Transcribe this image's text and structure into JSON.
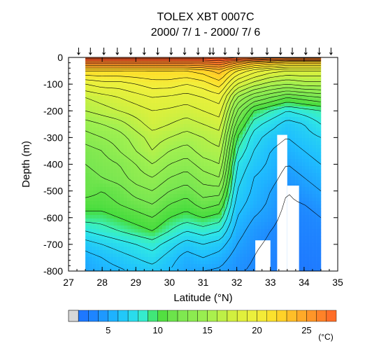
{
  "chart_data": {
    "type": "contour",
    "title": "TOLEX XBT 0007C",
    "subtitle": "2000/ 7/ 1 - 2000/ 7/ 6",
    "xlabel": "Latitude (°N)",
    "ylabel": "Depth (m)",
    "xlim": [
      27,
      35
    ],
    "ylim": [
      -800,
      0
    ],
    "xticks": [
      27,
      28,
      29,
      30,
      31,
      32,
      33,
      34,
      35
    ],
    "yticks": [
      0,
      -100,
      -200,
      -300,
      -400,
      -500,
      -600,
      -700,
      -800
    ],
    "colorbar": {
      "unit": "(°C)",
      "range": [
        1,
        31
      ],
      "tick_values": [
        5,
        10,
        15,
        20,
        25
      ],
      "tick_labels": [
        "5",
        "10",
        "15",
        "20",
        "25"
      ]
    },
    "station_latitudes": [
      27.3,
      27.65,
      28.05,
      28.45,
      28.85,
      29.25,
      29.65,
      30.05,
      30.45,
      30.85,
      31.2,
      31.3,
      31.65,
      32.05,
      32.45,
      32.9,
      33.3,
      33.65,
      34.05,
      34.45,
      34.8
    ],
    "data_extent": {
      "lat": [
        27.5,
        34.5
      ]
    },
    "temperature_profiles": {
      "lats": [
        27.5,
        28.0,
        28.5,
        29.0,
        29.5,
        30.0,
        30.5,
        31.0,
        31.5,
        32.0,
        32.5,
        33.0,
        33.5,
        34.0,
        34.5
      ],
      "depths": [
        0,
        -20,
        -50,
        -100,
        -150,
        -200,
        -250,
        -300,
        -350,
        -400,
        -450,
        -500,
        -550,
        -600,
        -650,
        -700,
        -750,
        -800
      ],
      "values": [
        [
          29.5,
          29.5,
          29.5,
          29.5,
          29.5,
          29.5,
          29.5,
          29.5,
          29.8,
          29.2,
          28.8,
          28.5,
          28.5,
          28.5,
          28.5
        ],
        [
          26.5,
          26.5,
          26.5,
          26.5,
          26.5,
          26.5,
          26.5,
          26.5,
          27.0,
          25.0,
          23.5,
          23.0,
          22.5,
          22.5,
          22.5
        ],
        [
          22.0,
          22.0,
          22.0,
          22.0,
          22.0,
          22.0,
          22.0,
          22.5,
          23.5,
          21.0,
          19.5,
          18.5,
          18.0,
          18.0,
          18.0
        ],
        [
          19.0,
          19.5,
          19.5,
          20.0,
          20.5,
          20.5,
          20.0,
          20.5,
          21.5,
          18.0,
          16.5,
          15.5,
          15.0,
          15.5,
          15.5
        ],
        [
          17.0,
          17.5,
          18.0,
          18.5,
          19.0,
          18.8,
          18.5,
          19.0,
          19.5,
          15.0,
          13.0,
          12.0,
          11.0,
          11.5,
          12.0
        ],
        [
          16.0,
          16.5,
          17.0,
          17.5,
          18.0,
          17.8,
          17.5,
          18.0,
          18.5,
          13.0,
          10.0,
          9.0,
          8.0,
          8.5,
          9.0
        ],
        [
          14.5,
          15.0,
          15.5,
          16.5,
          17.5,
          17.0,
          16.5,
          17.0,
          17.5,
          11.5,
          8.5,
          7.5,
          6.5,
          7.0,
          8.0
        ],
        [
          13.5,
          14.0,
          14.5,
          15.5,
          16.5,
          16.0,
          15.5,
          16.0,
          16.5,
          10.0,
          7.5,
          6.5,
          6.0,
          6.5,
          7.0
        ],
        [
          12.5,
          13.0,
          14.0,
          15.0,
          16.0,
          15.0,
          14.5,
          15.5,
          15.8,
          9.0,
          7.0,
          6.0,
          5.5,
          6.0,
          6.5
        ],
        [
          12.0,
          12.5,
          13.0,
          14.0,
          15.0,
          14.0,
          13.5,
          14.5,
          15.0,
          8.0,
          6.5,
          5.8,
          5.0,
          5.5,
          6.0
        ],
        [
          11.5,
          12.0,
          12.5,
          13.5,
          14.0,
          13.0,
          12.5,
          13.5,
          14.0,
          7.5,
          6.0,
          5.5,
          4.5,
          5.0,
          5.5
        ],
        [
          11.5,
          11.0,
          11.5,
          12.5,
          13.0,
          12.0,
          11.5,
          12.5,
          12.5,
          7.0,
          5.8,
          5.0,
          4.0,
          4.5,
          5.0
        ],
        [
          10.5,
          10.5,
          11.0,
          11.5,
          12.0,
          11.0,
          10.5,
          11.5,
          11.0,
          6.5,
          5.5,
          4.8,
          3.8,
          4.0,
          4.5
        ],
        [
          9.5,
          9.5,
          10.0,
          10.5,
          11.0,
          10.0,
          9.5,
          10.0,
          9.5,
          6.0,
          5.0,
          4.5,
          3.5,
          3.5,
          4.0
        ],
        [
          8.0,
          8.5,
          9.0,
          9.5,
          10.0,
          9.0,
          8.0,
          8.5,
          8.0,
          5.5,
          4.5,
          4.0,
          3.3,
          3.3,
          3.5
        ],
        [
          6.5,
          7.0,
          7.5,
          8.0,
          8.5,
          7.5,
          6.5,
          7.0,
          6.5,
          5.0,
          4.2,
          3.8,
          3.0,
          3.0,
          3.2
        ],
        [
          5.5,
          6.0,
          6.5,
          7.0,
          7.5,
          6.5,
          5.5,
          6.0,
          5.5,
          4.5,
          4.0,
          3.5,
          2.8,
          2.8,
          3.0
        ],
        [
          5.0,
          5.5,
          5.8,
          6.2,
          6.5,
          6.0,
          5.0,
          5.0,
          4.8,
          4.2,
          3.8,
          3.3,
          2.5,
          2.5,
          2.8
        ]
      ]
    },
    "missing_regions": [
      {
        "lat": [
          33.2,
          33.5
        ],
        "depth": [
          -290,
          -800
        ]
      },
      {
        "lat": [
          33.5,
          33.85
        ],
        "depth": [
          -480,
          -800
        ]
      },
      {
        "lat": [
          32.55,
          33.0
        ],
        "depth": [
          -685,
          -800
        ]
      }
    ]
  }
}
